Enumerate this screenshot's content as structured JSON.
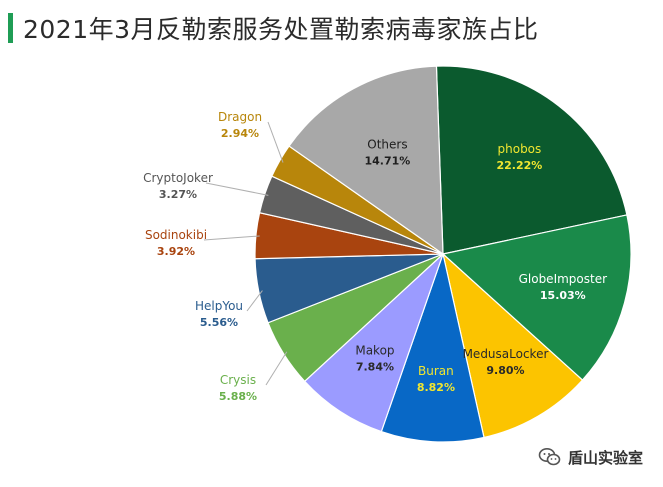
{
  "title": "2021年3月反勒索服务处置勒索病毒家族占比",
  "watermark": {
    "text": "盾山实验室",
    "icon": "wechat-icon"
  },
  "chart_data": {
    "type": "pie",
    "title": "2021年3月反勒索服务处置勒索病毒家族占比",
    "slices": [
      {
        "name": "phobos",
        "value": 22.22,
        "label": "22.22%",
        "color": "#0b5a2e",
        "text_color": "#f0e630"
      },
      {
        "name": "GlobeImposter",
        "value": 15.03,
        "label": "15.03%",
        "color": "#1a8a4a",
        "text_color": "#ffffff"
      },
      {
        "name": "MedusaLocker",
        "value": 9.8,
        "label": "9.80%",
        "color": "#fcc400",
        "text_color": "#2a2a2a"
      },
      {
        "name": "Buran",
        "value": 8.82,
        "label": "8.82%",
        "color": "#0868c6",
        "text_color": "#f0e630"
      },
      {
        "name": "Makop",
        "value": 7.84,
        "label": "7.84%",
        "color": "#9b9bff",
        "text_color": "#2a2a2a"
      },
      {
        "name": "Crysis",
        "value": 5.88,
        "label": "5.88%",
        "color": "#6ab04c",
        "text_color": "#6ab04c"
      },
      {
        "name": "HelpYou",
        "value": 5.56,
        "label": "5.56%",
        "color": "#2a5c8e",
        "text_color": "#2a5c8e"
      },
      {
        "name": "Sodinokibi",
        "value": 3.92,
        "label": "3.92%",
        "color": "#a9440f",
        "text_color": "#a9440f"
      },
      {
        "name": "CryptoJoker",
        "value": 3.27,
        "label": "3.27%",
        "color": "#5f5f5f",
        "text_color": "#555555"
      },
      {
        "name": "Dragon",
        "value": 2.94,
        "label": "2.94%",
        "color": "#b8860b",
        "text_color": "#b8860b"
      },
      {
        "name": "Others",
        "value": 14.71,
        "label": "14.71%",
        "color": "#a8a8a8",
        "text_color": "#1e1e1e"
      }
    ],
    "label_mode": [
      "inside",
      "inside",
      "inside",
      "inside",
      "inside",
      "outside",
      "outside",
      "outside",
      "outside",
      "outside",
      "inside"
    ]
  }
}
